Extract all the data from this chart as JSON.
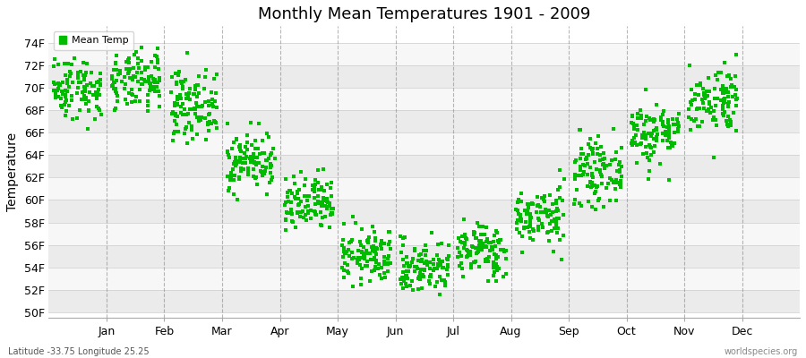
{
  "title": "Monthly Mean Temperatures 1901 - 2009",
  "ylabel": "Temperature",
  "xlabel_labels": [
    "Jan",
    "Feb",
    "Mar",
    "Apr",
    "May",
    "Jun",
    "Jul",
    "Aug",
    "Sep",
    "Oct",
    "Nov",
    "Dec"
  ],
  "ytick_labels": [
    "50F",
    "52F",
    "54F",
    "56F",
    "58F",
    "60F",
    "62F",
    "64F",
    "66F",
    "68F",
    "70F",
    "72F",
    "74F"
  ],
  "yticks": [
    50,
    52,
    54,
    56,
    58,
    60,
    62,
    64,
    66,
    68,
    70,
    72,
    74
  ],
  "ylim": [
    49.5,
    75.5
  ],
  "dot_color": "#00BB00",
  "dot_size": 5,
  "title_fontsize": 13,
  "axis_label_fontsize": 10,
  "tick_fontsize": 9,
  "legend_label": "Mean Temp",
  "footnote_left": "Latitude -33.75 Longitude 25.25",
  "footnote_right": "worldspecies.org",
  "monthly_means": [
    70.0,
    70.5,
    68.5,
    63.5,
    59.5,
    55.0,
    54.0,
    55.5,
    58.5,
    62.5,
    66.0,
    69.0
  ],
  "monthly_stds": [
    1.4,
    1.3,
    1.5,
    1.3,
    1.3,
    1.2,
    1.2,
    1.2,
    1.3,
    1.4,
    1.4,
    1.5
  ],
  "n_years": 109,
  "stripe_light": "#ebebeb",
  "stripe_white": "#f7f7f7",
  "bg_color": "#ffffff",
  "vline_color": "#888888",
  "vline_positions": [
    1,
    2,
    3,
    4,
    5,
    6,
    7,
    8,
    9,
    10,
    11,
    12
  ]
}
